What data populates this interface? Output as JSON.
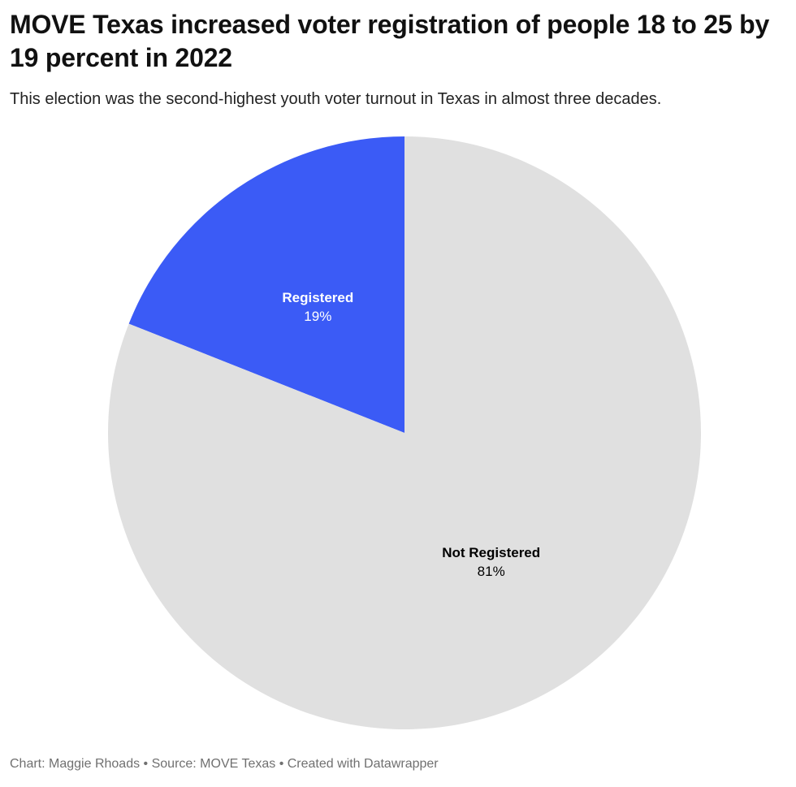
{
  "title": "MOVE Texas increased voter registration of people 18 to 25 by 19 percent in 2022",
  "subtitle": "This election was the second-highest youth voter turnout in Texas in almost three decades.",
  "footer": {
    "chart_credit": "Chart: Maggie Rhoads",
    "separator": " • ",
    "source": "Source: MOVE Texas",
    "created_with": "Created with Datawrapper"
  },
  "chart_data": {
    "type": "pie",
    "title": "MOVE Texas increased voter registration of people 18 to 25 by 19 percent in 2022",
    "subtitle": "This election was the second-highest youth voter turnout in Texas in almost three decades.",
    "slices": [
      {
        "label": "Registered",
        "value": 19,
        "value_label": "19%",
        "color": "#3b5bf6",
        "label_color": "#ffffff"
      },
      {
        "label": "Not Registered",
        "value": 81,
        "value_label": "81%",
        "color": "#e0e0e0",
        "label_color": "#000000"
      }
    ],
    "start": "12 o'clock",
    "direction": "counterclockwise",
    "legend": "none"
  }
}
